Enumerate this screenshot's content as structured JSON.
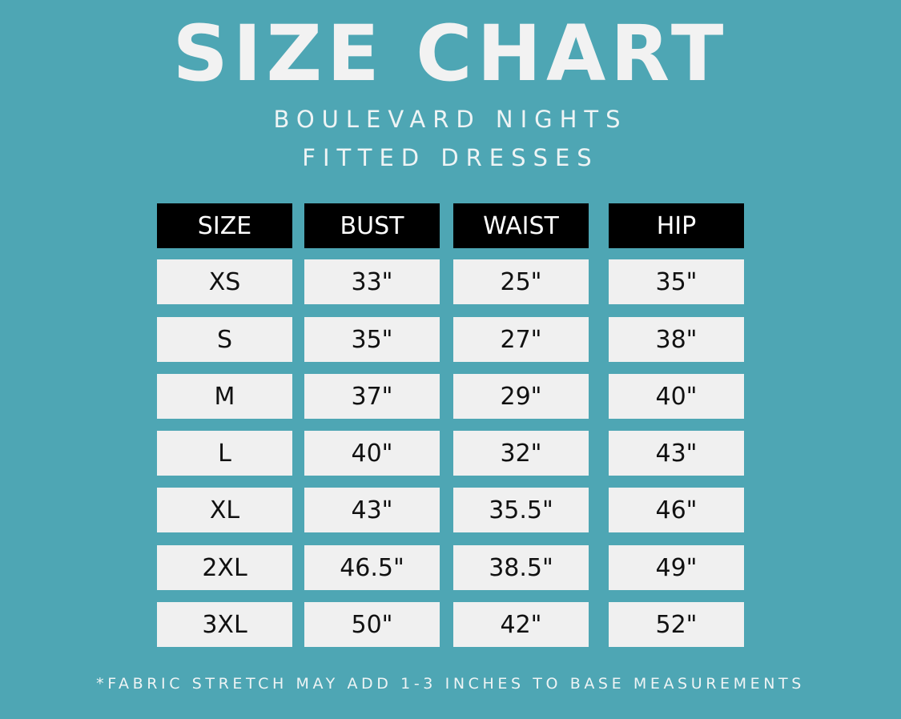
{
  "title": "SIZE CHART",
  "subtitle_line1": "BOULEVARD NIGHTS",
  "subtitle_line2": "FITTED DRESSES",
  "colors": {
    "background": "#4ea6b4",
    "header_cell": "#000000",
    "body_cell": "#f0f0f0"
  },
  "table": {
    "headers": [
      "SIZE",
      "BUST",
      "WAIST",
      "HIP"
    ],
    "rows": [
      [
        "XS",
        "33\"",
        "25\"",
        "35\""
      ],
      [
        "S",
        "35\"",
        "27\"",
        "38\""
      ],
      [
        "M",
        "37\"",
        "29\"",
        "40\""
      ],
      [
        "L",
        "40\"",
        "32\"",
        "43\""
      ],
      [
        "XL",
        "43\"",
        "35.5\"",
        "46\""
      ],
      [
        "2XL",
        "46.5\"",
        "38.5\"",
        "49\""
      ],
      [
        "3XL",
        "50\"",
        "42\"",
        "52\""
      ]
    ]
  },
  "footnote": "*FABRIC STRETCH MAY ADD 1-3 INCHES TO BASE MEASUREMENTS"
}
